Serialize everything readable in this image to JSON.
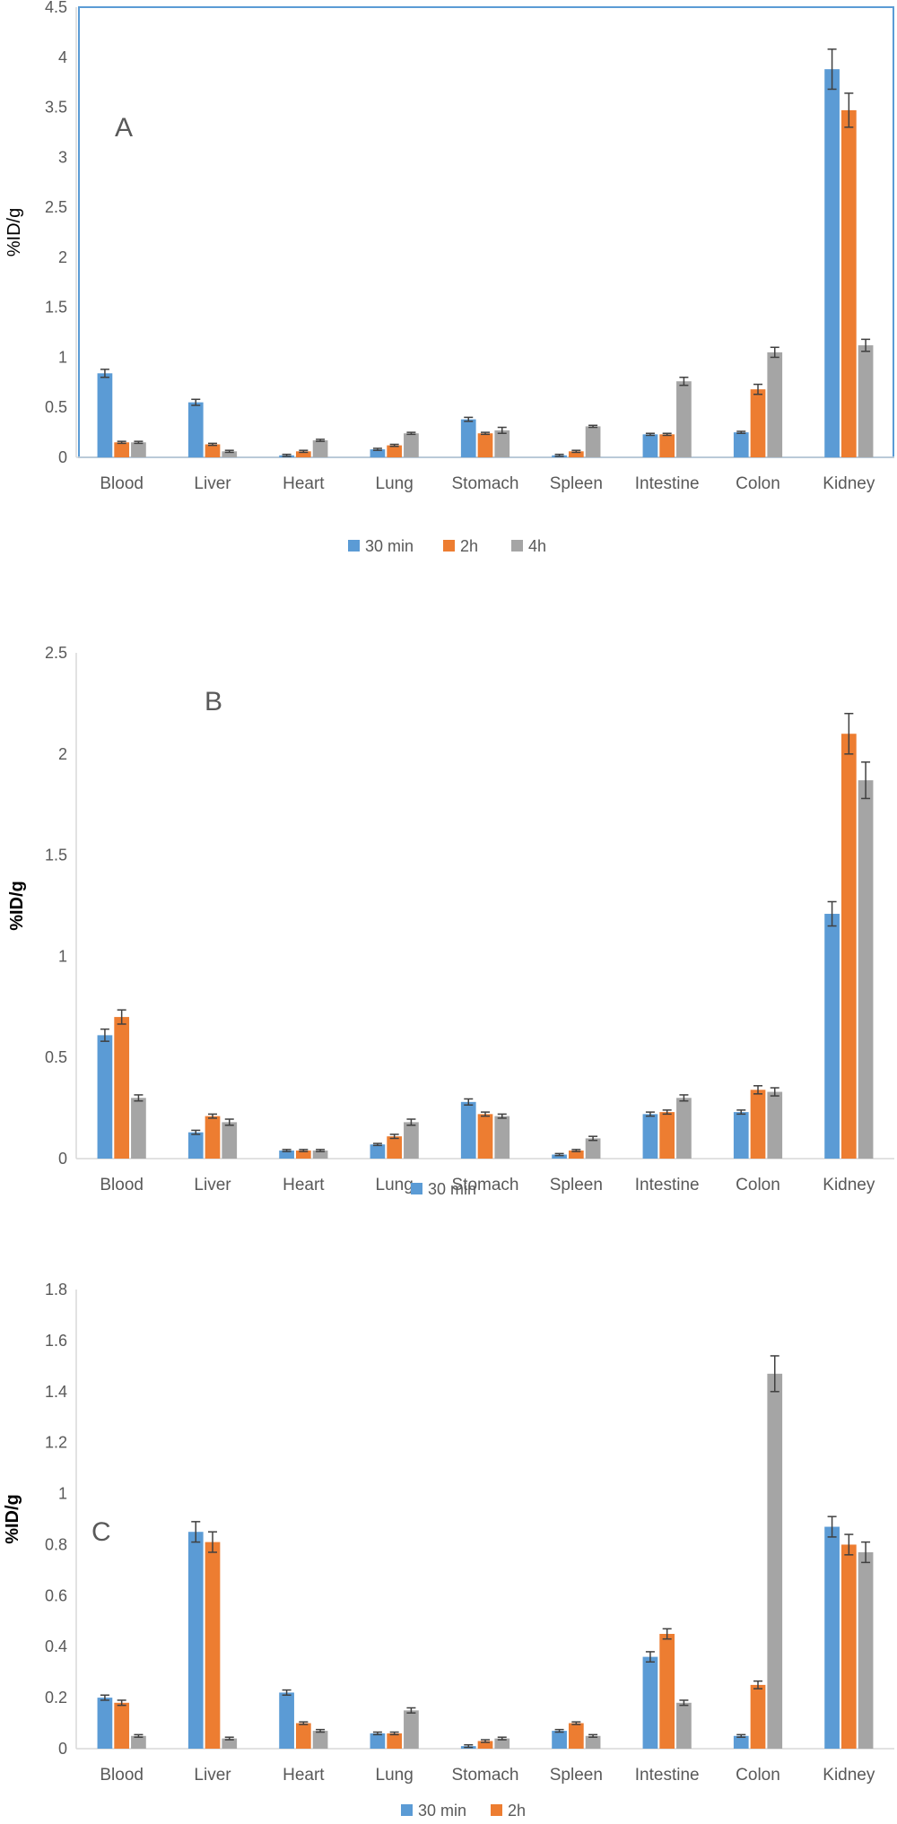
{
  "colors": {
    "series_30min": "#5B9BD5",
    "series_2h": "#ED7D31",
    "series_4h": "#A5A5A5",
    "axis": "#D9D9D9",
    "text": "#595959",
    "frame_A": "#5B9BD5",
    "error_bar": "#404040"
  },
  "chart_data": [
    {
      "type": "bar",
      "panel_label": "A",
      "ylabel": "%ID/g",
      "ylim": [
        0,
        4.5
      ],
      "yticks": [
        "0",
        "0.5",
        "1",
        "1.5",
        "2",
        "2.5",
        "3",
        "3.5",
        "4",
        "4.5"
      ],
      "categories": [
        "Blood",
        "Liver",
        "Heart",
        "Lung",
        "Stomach",
        "Spleen",
        "Intestine",
        "Colon",
        "Kidney"
      ],
      "legend_position": "bottom",
      "series": [
        {
          "name": "30 min",
          "values": [
            0.84,
            0.55,
            0.02,
            0.08,
            0.38,
            0.02,
            0.23,
            0.25,
            3.88
          ],
          "errors": [
            0.04,
            0.03,
            0.01,
            0.01,
            0.02,
            0.01,
            0.01,
            0.01,
            0.2
          ]
        },
        {
          "name": "2h",
          "values": [
            0.15,
            0.13,
            0.06,
            0.12,
            0.24,
            0.06,
            0.23,
            0.68,
            3.47
          ],
          "errors": [
            0.01,
            0.01,
            0.01,
            0.01,
            0.01,
            0.01,
            0.01,
            0.05,
            0.17
          ]
        },
        {
          "name": "4h",
          "values": [
            0.15,
            0.06,
            0.17,
            0.24,
            0.27,
            0.31,
            0.76,
            1.05,
            1.12
          ],
          "errors": [
            0.01,
            0.01,
            0.01,
            0.01,
            0.03,
            0.01,
            0.04,
            0.05,
            0.06
          ]
        }
      ]
    },
    {
      "type": "bar",
      "panel_label": "B",
      "ylabel": "%ID/g",
      "ylim": [
        0,
        2.5
      ],
      "yticks": [
        "0",
        "0.5",
        "1",
        "1.5",
        "2",
        "2.5"
      ],
      "categories": [
        "Blood",
        "Liver",
        "Heart",
        "Lung",
        "Stomach",
        "Spleen",
        "Intestine",
        "Colon",
        "Kidney"
      ],
      "legend_position": "bottom",
      "series": [
        {
          "name": "30 min",
          "values": [
            0.61,
            0.13,
            0.04,
            0.07,
            0.28,
            0.02,
            0.22,
            0.23,
            1.21
          ],
          "errors": [
            0.03,
            0.01,
            0.005,
            0.005,
            0.015,
            0.005,
            0.01,
            0.01,
            0.06
          ]
        },
        {
          "name": "",
          "values": [
            0.7,
            0.21,
            0.04,
            0.11,
            0.22,
            0.04,
            0.23,
            0.34,
            2.1
          ],
          "errors": [
            0.035,
            0.01,
            0.005,
            0.01,
            0.01,
            0.005,
            0.01,
            0.02,
            0.1
          ]
        },
        {
          "name": "",
          "values": [
            0.3,
            0.18,
            0.04,
            0.18,
            0.21,
            0.1,
            0.3,
            0.33,
            1.87
          ],
          "errors": [
            0.015,
            0.015,
            0.005,
            0.015,
            0.01,
            0.01,
            0.015,
            0.02,
            0.09
          ]
        }
      ]
    },
    {
      "type": "bar",
      "panel_label": "C",
      "ylabel": "%ID/g",
      "ylim": [
        0,
        1.8
      ],
      "yticks": [
        "0",
        "0.2",
        "0.4",
        "0.6",
        "0.8",
        "1",
        "1.2",
        "1.4",
        "1.6",
        "1.8"
      ],
      "categories": [
        "Blood",
        "Liver",
        "Heart",
        "Lung",
        "Stomach",
        "Spleen",
        "Intestine",
        "Colon",
        "Kidney"
      ],
      "legend_position": "bottom",
      "series": [
        {
          "name": "30 min",
          "values": [
            0.2,
            0.85,
            0.22,
            0.06,
            0.01,
            0.07,
            0.36,
            0.05,
            0.87
          ],
          "errors": [
            0.01,
            0.04,
            0.01,
            0.005,
            0.005,
            0.005,
            0.02,
            0.005,
            0.04
          ]
        },
        {
          "name": "2h",
          "values": [
            0.18,
            0.81,
            0.1,
            0.06,
            0.03,
            0.1,
            0.45,
            0.25,
            0.8
          ],
          "errors": [
            0.01,
            0.04,
            0.005,
            0.005,
            0.005,
            0.005,
            0.02,
            0.015,
            0.04
          ]
        },
        {
          "name": "",
          "values": [
            0.05,
            0.04,
            0.07,
            0.15,
            0.04,
            0.05,
            0.18,
            1.47,
            0.77
          ],
          "errors": [
            0.005,
            0.005,
            0.005,
            0.01,
            0.005,
            0.005,
            0.01,
            0.07,
            0.04
          ]
        }
      ]
    }
  ]
}
